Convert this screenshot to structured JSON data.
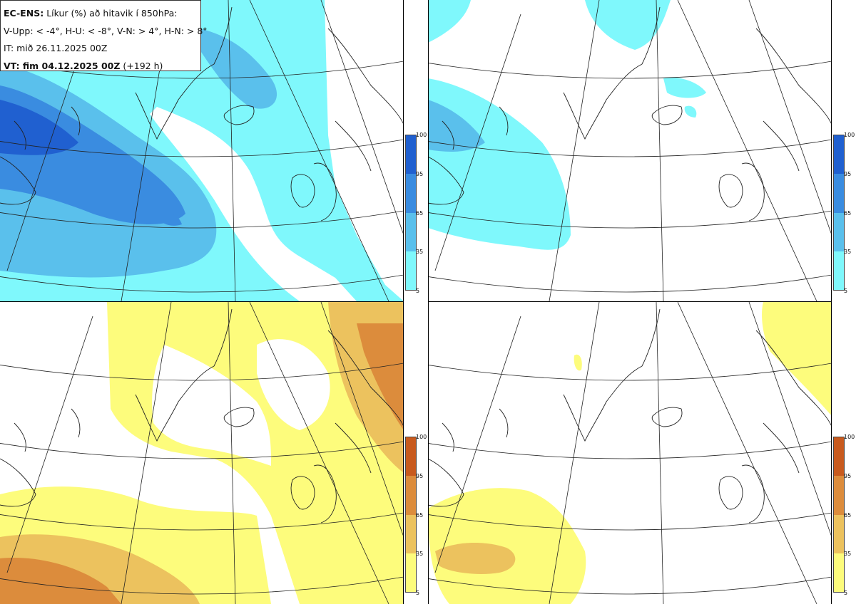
{
  "header": {
    "product": "EC-ENS:",
    "description": "Líkur (%) að hitavik í 850hPa:",
    "thresholds": "V-Upp: < -4°, H-U: < -8°, V-N: > 4°, H-N: > 8°",
    "init_time": "IT: mið 26.11.2025 00Z",
    "valid_time_label": "VT: fim 04.12.2025 00Z",
    "lead_time": "(+192 h)"
  },
  "colorbars": {
    "cold": {
      "ticks": [
        "100",
        "95",
        "65",
        "35",
        "5"
      ],
      "colors": [
        "#2060d0",
        "#3a8ce0",
        "#5ac0ec",
        "#7ff8fc"
      ]
    },
    "warm": {
      "ticks": [
        "100",
        "95",
        "65",
        "35",
        "5"
      ],
      "colors": [
        "#c85a1e",
        "#dc8c3c",
        "#ecc25e",
        "#fdfc7c"
      ]
    }
  },
  "panels": [
    {
      "name": "V-Upp",
      "scheme": "cold",
      "level": "shading"
    },
    {
      "name": "H-U",
      "scheme": "cold",
      "level": "shading"
    },
    {
      "name": "V-N",
      "scheme": "warm",
      "level": "shading"
    },
    {
      "name": "H-N",
      "scheme": "warm",
      "level": "shading"
    }
  ]
}
